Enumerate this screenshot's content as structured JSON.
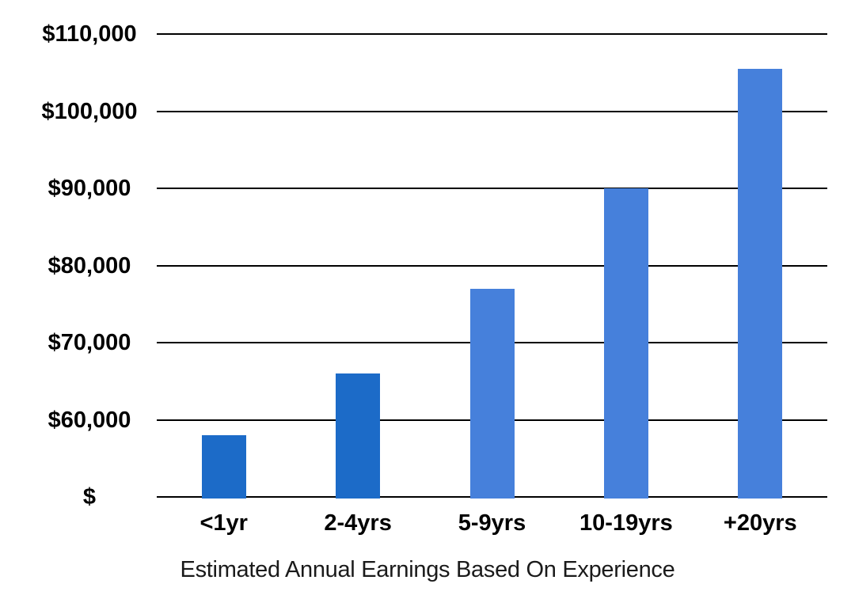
{
  "chart_data": {
    "type": "bar",
    "title": "Estimated Annual Earnings Based On Experience",
    "categories": [
      "<1yr",
      "2-4yrs",
      "5-9yrs",
      "10-19yrs",
      "+20yrs"
    ],
    "values": [
      58000,
      66000,
      77000,
      90000,
      105500
    ],
    "bar_colors": [
      "#1C6BC8",
      "#1C6BC8",
      "#4680DB",
      "#4680DB",
      "#4680DB"
    ],
    "ylim": [
      50000,
      110000
    ],
    "y_ticks": [
      {
        "label": "$110,000",
        "value": 110000
      },
      {
        "label": "$100,000",
        "value": 100000
      },
      {
        "label": "$90,000",
        "value": 90000
      },
      {
        "label": "$80,000",
        "value": 80000
      },
      {
        "label": "$70,000",
        "value": 70000
      },
      {
        "label": "$60,000",
        "value": 60000
      },
      {
        "label": "$",
        "value": 50000
      }
    ],
    "xlabel": "",
    "ylabel": "",
    "grid": true,
    "legend": false,
    "colors": {
      "dark_blue": "#1C6BC8",
      "light_blue": "#4680DB",
      "grid_line": "#000000",
      "text": "#000000",
      "background": "#FFFFFF"
    }
  }
}
